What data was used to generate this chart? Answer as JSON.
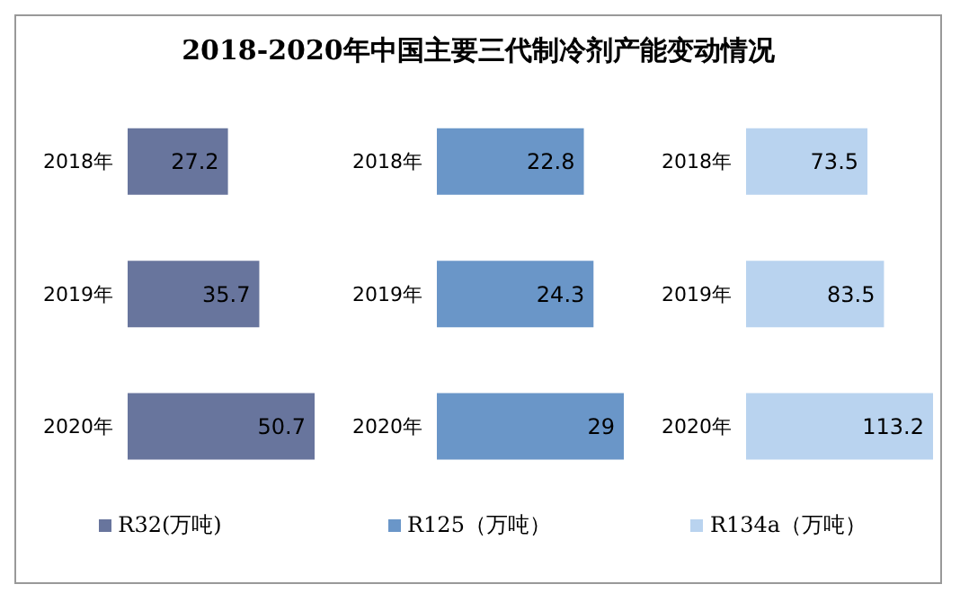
{
  "chart_data": [
    {
      "type": "bar",
      "orientation": "horizontal",
      "title": "2018-2020年中国主要三代制冷剂产能变动情况",
      "categories": [
        "2018年",
        "2019年",
        "2020年"
      ],
      "data_labels": true,
      "legend": "bottom",
      "grid": false,
      "series": [
        {
          "name": "R32(万吨)",
          "color": "#68759d",
          "values": [
            27.2,
            35.7,
            50.7
          ]
        }
      ]
    },
    {
      "type": "bar",
      "orientation": "horizontal",
      "categories": [
        "2018年",
        "2019年",
        "2020年"
      ],
      "data_labels": true,
      "legend": "bottom",
      "grid": false,
      "series": [
        {
          "name": "R125（万吨）",
          "color": "#6a96c8",
          "values": [
            22.8,
            24.3,
            29
          ]
        }
      ]
    },
    {
      "type": "bar",
      "orientation": "horizontal",
      "categories": [
        "2018年",
        "2019年",
        "2020年"
      ],
      "data_labels": true,
      "legend": "bottom",
      "grid": false,
      "series": [
        {
          "name": "R134a（万吨）",
          "color": "#b9d3ef",
          "values": [
            73.5,
            83.5,
            113.2
          ]
        }
      ]
    }
  ]
}
